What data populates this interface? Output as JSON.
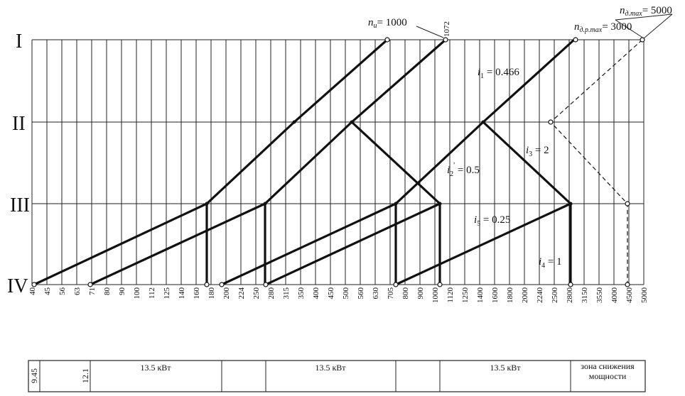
{
  "shafts": [
    "I",
    "II",
    "III",
    "IV"
  ],
  "speeds": [
    "40",
    "45",
    "56",
    "63",
    "71",
    "80",
    "90",
    "100",
    "112",
    "125",
    "140",
    "160",
    "180",
    "200",
    "224",
    "250",
    "280",
    "315",
    "350",
    "400",
    "450",
    "500",
    "560",
    "630",
    "705",
    "800",
    "900",
    "1000",
    "1120",
    "1250",
    "1400",
    "1600",
    "1800",
    "2000",
    "2240",
    "2500",
    "2800",
    "3150",
    "3550",
    "4000",
    "4500",
    "5000"
  ],
  "annotations": {
    "n_i_sym": "n",
    "n_i_sub": "и",
    "n_i_val": "= 1000",
    "n_1072": "1072",
    "n_dr_sym": "n",
    "n_dr_sub": "д.р.max",
    "n_dr_val": "= 3000",
    "n_dmax_sym": "n",
    "n_dmax_sub": "д.max",
    "n_dmax_val": "= 5000",
    "i1_sym": "i",
    "i1_sub": "1",
    "i1_val": " = 0.466",
    "i2_sym": "i",
    "i2_sub": "2",
    "i2_prime": "'",
    "i2_val": " = 0.5",
    "i3_sym": "i",
    "i3_sub": "3",
    "i3_val": " = 2",
    "i4_sym": "i",
    "i4_sub": "4",
    "i4_val": " = 1",
    "i5_sym": "i",
    "i5_sub": "5",
    "i5_val": " = 0.25"
  },
  "power_bar": {
    "cells": [
      "9.45",
      "12.1",
      "13.5 кВт",
      "",
      "13.5 кВт",
      "",
      "13.5 кВт",
      "зона снижения мощности"
    ],
    "zone_line1": "зона снижения",
    "zone_line2": "мощности"
  }
}
